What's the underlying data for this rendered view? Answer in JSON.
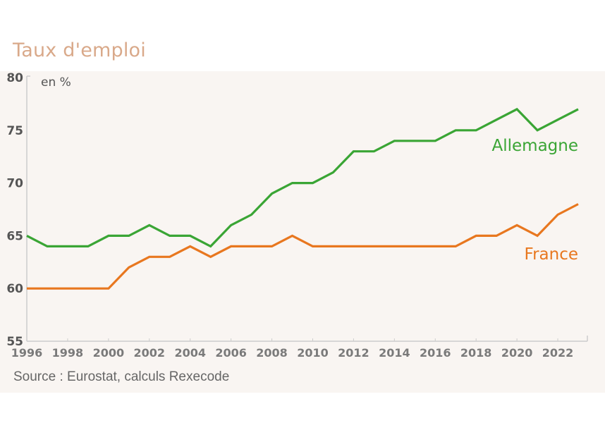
{
  "title": "Taux d'emploi",
  "unit_label": "en %",
  "source": "Source : Eurostat, calculs Rexecode",
  "colors": {
    "title": "#d9a98a",
    "allemagne": "#3aa535",
    "france": "#e8771f",
    "panel_bg": "#f9f5f2",
    "axis": "#cccccc"
  },
  "chart_data": {
    "type": "line",
    "title": "Taux d'emploi",
    "xlabel": "",
    "ylabel": "en %",
    "ylim": [
      55,
      80
    ],
    "xlim": [
      1996,
      2023
    ],
    "yticks": [
      55,
      60,
      65,
      70,
      75,
      80
    ],
    "xticks": [
      1996,
      1998,
      2000,
      2002,
      2004,
      2006,
      2008,
      2010,
      2012,
      2014,
      2016,
      2018,
      2020,
      2022
    ],
    "grid": false,
    "legend_position": "inline labels at right",
    "x": [
      1996,
      1997,
      1998,
      1999,
      2000,
      2001,
      2002,
      2003,
      2004,
      2005,
      2006,
      2007,
      2008,
      2009,
      2010,
      2011,
      2012,
      2013,
      2014,
      2015,
      2016,
      2017,
      2018,
      2019,
      2020,
      2021,
      2022,
      2023
    ],
    "series": [
      {
        "name": "Allemagne",
        "color": "#3aa535",
        "values": [
          65,
          64,
          64,
          64,
          65,
          65,
          66,
          65,
          65,
          64,
          66,
          67,
          69,
          70,
          70,
          71,
          73,
          73,
          74,
          74,
          74,
          75,
          75,
          76,
          77,
          75,
          76,
          77
        ]
      },
      {
        "name": "France",
        "color": "#e8771f",
        "values": [
          60,
          60,
          60,
          60,
          60,
          62,
          63,
          63,
          64,
          63,
          64,
          64,
          64,
          65,
          64,
          64,
          64,
          64,
          64,
          64,
          64,
          64,
          65,
          65,
          66,
          65,
          67,
          68
        ]
      }
    ],
    "annotations": [
      "Allemagne",
      "France"
    ],
    "source": "Source : Eurostat, calculs Rexecode"
  }
}
